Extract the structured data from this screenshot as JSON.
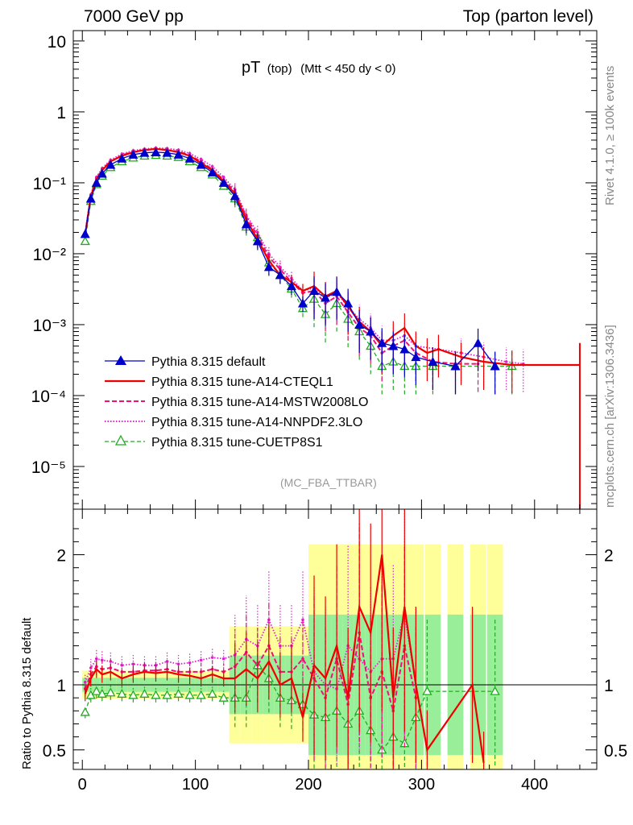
{
  "header": {
    "left_title": "7000 GeV pp",
    "right_title": "Top (parton level)"
  },
  "side_labels": {
    "upper": "Rivet 4.1.0, ≥ 100k events",
    "lower": "mcplots.cern.ch [arXiv:1306.3436]"
  },
  "plot_title": {
    "main": "pT",
    "sub": "(top)",
    "condition": "(Mtt < 450 dy < 0)"
  },
  "analysis_label": "(MC_FBA_TTBAR)",
  "ratio_ylabel": "Ratio to Pythia 8.315 default",
  "colors": {
    "default": "#0000cc",
    "cteql1": "#ee0000",
    "mstw": "#ee1177",
    "nnpdf": "#dd22cc",
    "cuetp": "#22aa22",
    "band_yellow": "#ffff99",
    "band_green": "#99ee99"
  },
  "chart_data": [
    {
      "type": "line",
      "panel": "main",
      "yscale": "log",
      "xlim": [
        -8,
        455
      ],
      "ylim": [
        2.5e-06,
        14
      ],
      "y_tick_labels": [
        "10",
        "1",
        "10⁻¹",
        "10⁻²",
        "10⁻³",
        "10⁻⁴",
        "10⁻⁵"
      ],
      "x_tick_labels": [
        "0",
        "100",
        "200",
        "300",
        "400"
      ],
      "legend": [
        {
          "key": "default",
          "label": "Pythia 8.315 default"
        },
        {
          "key": "cteql1",
          "label": "Pythia 8.315 tune-A14-CTEQL1"
        },
        {
          "key": "mstw",
          "label": "Pythia 8.315 tune-A14-MSTW2008LO"
        },
        {
          "key": "nnpdf",
          "label": "Pythia 8.315 tune-A14-NNPDF2.3LO"
        },
        {
          "key": "cuetp",
          "label": "Pythia 8.315 tune-CUETP8S1"
        }
      ],
      "series": [
        {
          "name": "Pythia 8.315 default",
          "key": "default",
          "x": [
            2.5,
            7.5,
            12.5,
            17.5,
            25,
            35,
            45,
            55,
            65,
            75,
            85,
            95,
            105,
            115,
            125,
            135,
            145,
            155,
            165,
            175,
            185,
            195,
            205,
            215,
            225,
            235,
            245,
            255,
            265,
            275,
            285,
            295,
            310,
            330,
            350,
            365
          ],
          "y": [
            0.019,
            0.06,
            0.1,
            0.135,
            0.18,
            0.22,
            0.25,
            0.265,
            0.27,
            0.265,
            0.25,
            0.22,
            0.18,
            0.14,
            0.1,
            0.065,
            0.026,
            0.015,
            0.0065,
            0.005,
            0.0035,
            0.002,
            0.003,
            0.0024,
            0.0029,
            0.002,
            0.001,
            0.0008,
            0.00055,
            0.0005,
            0.00045,
            0.00035,
            0.0003,
            0.00026,
            0.00055,
            0.00026
          ]
        },
        {
          "name": "Pythia 8.315 tune-A14-CTEQL1",
          "key": "cteql1",
          "x": [
            2.5,
            7.5,
            12.5,
            17.5,
            25,
            35,
            45,
            55,
            65,
            75,
            85,
            95,
            105,
            115,
            125,
            135,
            145,
            155,
            165,
            175,
            185,
            195,
            205,
            215,
            225,
            235,
            245,
            255,
            265,
            275,
            285,
            295,
            305,
            315,
            335,
            355,
            380,
            440
          ],
          "y": [
            0.018,
            0.065,
            0.11,
            0.15,
            0.2,
            0.24,
            0.27,
            0.29,
            0.3,
            0.29,
            0.27,
            0.24,
            0.19,
            0.15,
            0.105,
            0.07,
            0.03,
            0.016,
            0.008,
            0.005,
            0.004,
            0.003,
            0.0035,
            0.0025,
            0.003,
            0.0018,
            0.0011,
            0.0008,
            0.0005,
            0.0007,
            0.0009,
            0.0005,
            0.0004,
            0.00045,
            0.00035,
            0.0003,
            0.00027,
            0.00027
          ]
        },
        {
          "name": "Pythia 8.315 tune-A14-MSTW2008LO",
          "key": "mstw",
          "x": [
            2.5,
            7.5,
            12.5,
            17.5,
            25,
            35,
            45,
            55,
            65,
            75,
            85,
            95,
            105,
            115,
            125,
            135,
            145,
            155,
            165,
            175,
            185,
            195,
            205,
            215,
            225,
            235,
            245,
            255,
            265,
            275,
            285,
            295,
            310,
            330,
            350
          ],
          "y": [
            0.019,
            0.066,
            0.115,
            0.155,
            0.2,
            0.245,
            0.275,
            0.29,
            0.3,
            0.29,
            0.275,
            0.245,
            0.2,
            0.155,
            0.11,
            0.075,
            0.033,
            0.018,
            0.009,
            0.006,
            0.004,
            0.0028,
            0.003,
            0.002,
            0.0025,
            0.0015,
            0.0009,
            0.0007,
            0.0004,
            0.0005,
            0.0006,
            0.0004,
            0.0003,
            0.00028,
            0.00028
          ]
        },
        {
          "name": "Pythia 8.315 tune-A14-NNPDF2.3LO",
          "key": "nnpdf",
          "x": [
            2.5,
            7.5,
            12.5,
            17.5,
            25,
            35,
            45,
            55,
            65,
            75,
            85,
            95,
            105,
            115,
            125,
            135,
            145,
            155,
            165,
            175,
            185,
            195,
            205,
            215,
            225,
            235,
            245,
            255,
            265,
            275,
            285,
            295,
            315,
            335,
            355,
            375,
            390
          ],
          "y": [
            0.02,
            0.068,
            0.12,
            0.16,
            0.21,
            0.255,
            0.285,
            0.3,
            0.31,
            0.305,
            0.29,
            0.26,
            0.215,
            0.17,
            0.12,
            0.08,
            0.035,
            0.02,
            0.01,
            0.0065,
            0.0045,
            0.003,
            0.0033,
            0.0024,
            0.0028,
            0.0018,
            0.0012,
            0.0009,
            0.0006,
            0.0006,
            0.0007,
            0.0005,
            0.00045,
            0.0004,
            0.00035,
            0.0003,
            0.00028
          ]
        },
        {
          "name": "Pythia 8.315 tune-CUETP8S1",
          "key": "cuetp",
          "x": [
            2.5,
            7.5,
            12.5,
            17.5,
            25,
            35,
            45,
            55,
            65,
            75,
            85,
            95,
            105,
            115,
            125,
            135,
            145,
            155,
            165,
            175,
            185,
            195,
            205,
            215,
            225,
            235,
            245,
            255,
            265,
            275,
            285,
            295,
            310,
            330,
            365,
            380
          ],
          "y": [
            0.015,
            0.055,
            0.095,
            0.125,
            0.165,
            0.2,
            0.225,
            0.24,
            0.245,
            0.24,
            0.23,
            0.2,
            0.165,
            0.13,
            0.09,
            0.06,
            0.024,
            0.017,
            0.0075,
            0.005,
            0.0032,
            0.0017,
            0.0023,
            0.0014,
            0.002,
            0.0012,
            0.0008,
            0.0005,
            0.00026,
            0.0003,
            0.00026,
            0.00026,
            0.00026,
            0.00026,
            0.00026,
            0.00026
          ]
        }
      ]
    },
    {
      "type": "line",
      "panel": "ratio",
      "xlim": [
        -8,
        455
      ],
      "ylim": [
        0.35,
        2.35
      ],
      "y_tick_labels": [
        "0.5",
        "1",
        "2"
      ],
      "x_tick_labels": [
        "0",
        "100",
        "200",
        "300",
        "400"
      ],
      "ylabel": "Ratio to Pythia 8.315 default",
      "series": [
        {
          "name": "Pythia 8.315 tune-A14-CTEQL1",
          "key": "cteql1",
          "x": [
            2.5,
            7.5,
            12.5,
            17.5,
            25,
            35,
            45,
            55,
            65,
            75,
            85,
            95,
            105,
            115,
            125,
            135,
            145,
            155,
            165,
            175,
            185,
            195,
            205,
            215,
            225,
            235,
            245,
            255,
            265,
            275,
            285,
            295,
            305,
            345,
            355
          ],
          "y": [
            0.93,
            1.05,
            1.12,
            1.08,
            1.1,
            1.05,
            1.08,
            1.1,
            1.09,
            1.1,
            1.08,
            1.07,
            1.05,
            1.08,
            1.05,
            1.05,
            1.12,
            1.05,
            1.18,
            1.0,
            1.05,
            0.75,
            1.15,
            1.05,
            1.3,
            0.9,
            1.6,
            1.4,
            2.0,
            0.9,
            1.6,
            1.0,
            0.5,
            1.0,
            0.4
          ]
        },
        {
          "name": "Pythia 8.315 tune-A14-MSTW2008LO",
          "key": "mstw",
          "x": [
            2.5,
            7.5,
            12.5,
            17.5,
            25,
            35,
            45,
            55,
            65,
            75,
            85,
            95,
            105,
            115,
            125,
            135,
            145,
            155,
            165,
            175,
            185,
            195,
            205,
            215,
            225,
            235,
            245,
            255,
            265,
            275,
            285,
            295
          ],
          "y": [
            0.97,
            1.08,
            1.14,
            1.12,
            1.13,
            1.1,
            1.1,
            1.11,
            1.11,
            1.12,
            1.1,
            1.1,
            1.1,
            1.12,
            1.1,
            1.14,
            1.25,
            1.15,
            1.3,
            1.1,
            1.1,
            1.2,
            1.05,
            0.9,
            1.2,
            0.85,
            1.4,
            0.9,
            1.1,
            0.8,
            1.3,
            0.9
          ]
        },
        {
          "name": "Pythia 8.315 tune-A14-NNPDF2.3LO",
          "key": "nnpdf",
          "x": [
            2.5,
            7.5,
            12.5,
            17.5,
            25,
            35,
            45,
            55,
            65,
            75,
            85,
            95,
            105,
            115,
            125,
            135,
            145,
            155,
            165,
            175,
            185,
            195,
            205,
            215,
            225,
            235,
            245,
            255,
            265,
            275,
            285,
            295
          ],
          "y": [
            1.02,
            1.13,
            1.2,
            1.19,
            1.18,
            1.15,
            1.16,
            1.15,
            1.15,
            1.18,
            1.16,
            1.17,
            1.19,
            1.21,
            1.2,
            1.23,
            1.35,
            1.3,
            1.5,
            1.3,
            1.3,
            1.5,
            1.1,
            1.0,
            0.97,
            1.3,
            1.2,
            1.1,
            1.2,
            1.2,
            1.55,
            1.0
          ]
        },
        {
          "name": "Pythia 8.315 tune-CUETP8S1",
          "key": "cuetp",
          "x": [
            2.5,
            7.5,
            12.5,
            17.5,
            25,
            35,
            45,
            55,
            65,
            75,
            85,
            95,
            105,
            115,
            125,
            135,
            145,
            155,
            165,
            175,
            185,
            195,
            205,
            215,
            225,
            235,
            245,
            255,
            265,
            275,
            285,
            295,
            305,
            365
          ],
          "y": [
            0.79,
            0.92,
            0.95,
            0.93,
            0.94,
            0.93,
            0.92,
            0.93,
            0.92,
            0.92,
            0.93,
            0.92,
            0.92,
            0.93,
            0.9,
            0.9,
            0.9,
            1.15,
            1.05,
            0.9,
            0.88,
            0.85,
            0.77,
            0.75,
            0.8,
            0.7,
            0.8,
            0.65,
            0.5,
            0.6,
            0.55,
            0.75,
            0.95,
            0.95
          ]
        }
      ]
    }
  ]
}
